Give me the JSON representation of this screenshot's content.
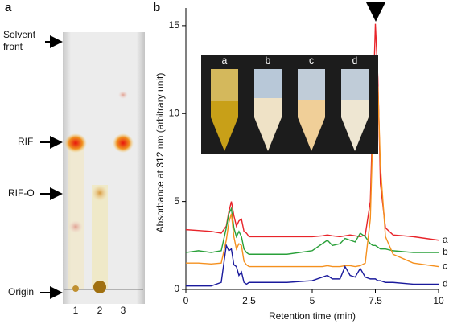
{
  "figure": {
    "panel_a": "a",
    "panel_b": "b",
    "plate_labels": {
      "solvent_front": [
        "Solvent",
        "front"
      ],
      "rif": "RIF",
      "rif_o": "RIF-O",
      "origin": "Origin"
    },
    "lanes": [
      "1",
      "2",
      "3"
    ],
    "inset_labels": [
      "a",
      "b",
      "c",
      "d"
    ]
  },
  "chart_data": {
    "type": "line",
    "x_label": "Retention time (min)",
    "y_label": "Absorbance at 312 nm (arbitrary unit)",
    "x": [
      0,
      0.5,
      1,
      1.4,
      1.6,
      1.7,
      1.8,
      1.9,
      2,
      2.1,
      2.2,
      2.3,
      2.4,
      2.5,
      3,
      4,
      5,
      5.4,
      5.6,
      5.8,
      6.1,
      6.3,
      6.5,
      6.7,
      6.9,
      7.1,
      7.3,
      7.4,
      7.5,
      7.6,
      7.7,
      7.9,
      8.2,
      9,
      10
    ],
    "series": [
      {
        "name": "a",
        "color": "#e8242a",
        "values": [
          3.4,
          3.35,
          3.3,
          3.2,
          3.6,
          4.4,
          5.0,
          4.2,
          3.6,
          3.9,
          4.0,
          3.3,
          3.2,
          3.0,
          3.0,
          3.0,
          3.0,
          3.05,
          3.1,
          3.05,
          3.0,
          3.05,
          3.1,
          3.05,
          3.0,
          3.1,
          5,
          10,
          15.1,
          12,
          6,
          3.5,
          3.1,
          3.0,
          2.8
        ]
      },
      {
        "name": "b",
        "color": "#2aa03a",
        "values": [
          2.1,
          2.2,
          2.1,
          2.2,
          3.5,
          4.3,
          4.6,
          3.5,
          3.0,
          3.3,
          3.0,
          2.3,
          2.1,
          2.0,
          2.0,
          2.0,
          2.2,
          2.6,
          2.8,
          2.5,
          2.6,
          2.9,
          2.8,
          2.7,
          3.2,
          3.0,
          2.6,
          2.5,
          2.5,
          2.4,
          2.3,
          2.3,
          2.2,
          2.1,
          2.1
        ]
      },
      {
        "name": "c",
        "color": "#f5901e",
        "values": [
          1.5,
          1.5,
          1.45,
          1.5,
          2.8,
          3.8,
          4.3,
          3.0,
          2.3,
          2.6,
          2.5,
          1.6,
          1.4,
          1.3,
          1.3,
          1.3,
          1.3,
          1.3,
          1.35,
          1.3,
          1.3,
          1.35,
          1.35,
          1.3,
          1.35,
          1.5,
          4,
          9,
          12.2,
          11.5,
          7,
          3,
          2,
          1.5,
          1.3
        ]
      },
      {
        "name": "d",
        "color": "#1a1a9c",
        "values": [
          0.2,
          0.2,
          0.2,
          0.4,
          2.5,
          2.2,
          2.3,
          1.4,
          1.3,
          0.8,
          1.0,
          0.4,
          0.3,
          0.4,
          0.4,
          0.4,
          0.5,
          0.7,
          0.8,
          0.6,
          0.6,
          1.3,
          0.8,
          0.7,
          1.2,
          0.7,
          0.6,
          0.6,
          0.6,
          0.5,
          0.5,
          0.4,
          0.4,
          0.3,
          0.3
        ]
      }
    ],
    "xlim": [
      0,
      10
    ],
    "xticks": [
      0,
      2.5,
      5,
      7.5,
      10
    ],
    "ylim": [
      0,
      16
    ],
    "yticks": [
      0,
      5,
      10,
      15
    ]
  }
}
